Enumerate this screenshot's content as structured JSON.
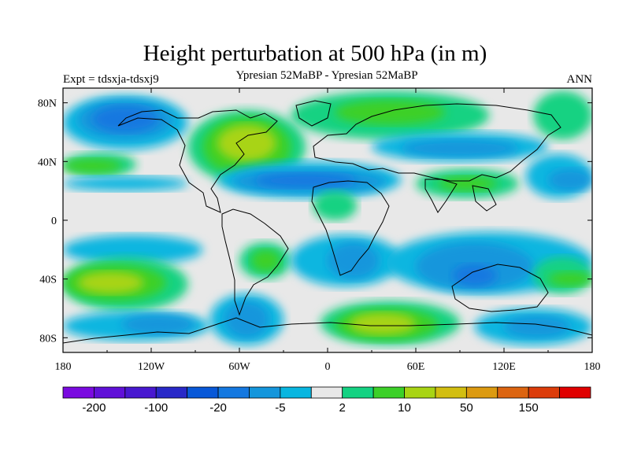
{
  "chart_data": {
    "type": "heatmap",
    "title": "Height perturbation at 500 hPa (in m)",
    "subtitle_left": "Expt = tdsxja-tdsxj9",
    "subtitle_center": "Ypresian  52MaBP - Ypresian  52MaBP",
    "subtitle_right": "ANN",
    "x_axis": {
      "range": [
        -180,
        180
      ],
      "ticks": [
        {
          "value": -180,
          "label": "180"
        },
        {
          "value": -120,
          "label": "120W"
        },
        {
          "value": -60,
          "label": "60W"
        },
        {
          "value": 0,
          "label": "0"
        },
        {
          "value": 60,
          "label": "60E"
        },
        {
          "value": 120,
          "label": "120E"
        },
        {
          "value": 180,
          "label": "180"
        }
      ]
    },
    "y_axis": {
      "range": [
        -90,
        90
      ],
      "ticks": [
        {
          "value": 80,
          "label": "80N"
        },
        {
          "value": 40,
          "label": "40N"
        },
        {
          "value": 0,
          "label": "0"
        },
        {
          "value": -40,
          "label": "40S"
        },
        {
          "value": -80,
          "label": "80S"
        }
      ]
    },
    "colorbar": {
      "colors": [
        "#7a0ae0",
        "#6010d8",
        "#4818d0",
        "#2828c8",
        "#0858d8",
        "#1478e0",
        "#1496dc",
        "#08b6e0",
        "#e8e8e8",
        "#14d282",
        "#3cd028",
        "#a8d414",
        "#d2be10",
        "#dc9a10",
        "#dc6410",
        "#dc3c0a",
        "#e00000"
      ],
      "labels": [
        {
          "after_box": 1,
          "text": "-200"
        },
        {
          "after_box": 3,
          "text": "-100"
        },
        {
          "after_box": 5,
          "text": "-20"
        },
        {
          "after_box": 7,
          "text": "-5"
        },
        {
          "after_box": 9,
          "text": "2"
        },
        {
          "after_box": 11,
          "text": "10"
        },
        {
          "after_box": 13,
          "text": "50"
        },
        {
          "after_box": 15,
          "text": "150"
        }
      ]
    },
    "regions": [
      {
        "level": "neg-light",
        "lon": [
          -180,
          -95
        ],
        "lat": [
          48,
          85
        ]
      },
      {
        "level": "neg-mid",
        "lon": [
          -170,
          -105
        ],
        "lat": [
          55,
          82
        ]
      },
      {
        "level": "neg-strong",
        "lon": [
          -160,
          -115
        ],
        "lat": [
          60,
          78
        ]
      },
      {
        "level": "pos-light",
        "lon": [
          -180,
          -130
        ],
        "lat": [
          30,
          46
        ]
      },
      {
        "level": "pos-mid",
        "lon": [
          -180,
          -140
        ],
        "lat": [
          32,
          42
        ]
      },
      {
        "level": "neg-light",
        "lon": [
          -180,
          -95
        ],
        "lat": [
          20,
          30
        ]
      },
      {
        "level": "pos-light",
        "lon": [
          -95,
          -15
        ],
        "lat": [
          25,
          75
        ]
      },
      {
        "level": "pos-mid",
        "lon": [
          -85,
          -25
        ],
        "lat": [
          30,
          70
        ]
      },
      {
        "level": "pos-strong",
        "lon": [
          -75,
          -35
        ],
        "lat": [
          40,
          65
        ]
      },
      {
        "level": "neg-light",
        "lon": [
          -75,
          50
        ],
        "lat": [
          15,
          40
        ]
      },
      {
        "level": "neg-mid",
        "lon": [
          -65,
          40
        ],
        "lat": [
          18,
          35
        ]
      },
      {
        "level": "neg-strong",
        "lon": [
          -50,
          20
        ],
        "lat": [
          22,
          32
        ]
      },
      {
        "level": "pos-light",
        "lon": [
          -25,
          110
        ],
        "lat": [
          55,
          88
        ]
      },
      {
        "level": "pos-mid",
        "lon": [
          5,
          80
        ],
        "lat": [
          65,
          82
        ]
      },
      {
        "level": "neg-light",
        "lon": [
          30,
          150
        ],
        "lat": [
          40,
          60
        ]
      },
      {
        "level": "neg-mid",
        "lon": [
          50,
          130
        ],
        "lat": [
          43,
          55
        ]
      },
      {
        "level": "pos-light",
        "lon": [
          60,
          130
        ],
        "lat": [
          15,
          35
        ]
      },
      {
        "level": "pos-mid",
        "lon": [
          75,
          115
        ],
        "lat": [
          20,
          30
        ]
      },
      {
        "level": "pos-light",
        "lon": [
          140,
          180
        ],
        "lat": [
          55,
          88
        ]
      },
      {
        "level": "neg-light",
        "lon": [
          135,
          180
        ],
        "lat": [
          15,
          45
        ]
      },
      {
        "level": "neg-mid",
        "lon": [
          150,
          180
        ],
        "lat": [
          20,
          35
        ]
      },
      {
        "level": "pos-light",
        "lon": [
          -10,
          20
        ],
        "lat": [
          0,
          20
        ]
      },
      {
        "level": "neg-light",
        "lon": [
          -180,
          -85
        ],
        "lat": [
          -30,
          -10
        ]
      },
      {
        "level": "pos-light",
        "lon": [
          -180,
          -95
        ],
        "lat": [
          -62,
          -25
        ]
      },
      {
        "level": "pos-mid",
        "lon": [
          -180,
          -110
        ],
        "lat": [
          -55,
          -30
        ]
      },
      {
        "level": "pos-strong",
        "lon": [
          -170,
          -125
        ],
        "lat": [
          -50,
          -35
        ]
      },
      {
        "level": "neg-light",
        "lon": [
          -180,
          -80
        ],
        "lat": [
          -82,
          -62
        ]
      },
      {
        "level": "neg-mid",
        "lon": [
          -140,
          -90
        ],
        "lat": [
          -78,
          -64
        ]
      },
      {
        "level": "pos-light",
        "lon": [
          -60,
          -25
        ],
        "lat": [
          -40,
          -15
        ]
      },
      {
        "level": "pos-mid",
        "lon": [
          -52,
          -32
        ],
        "lat": [
          -35,
          -20
        ]
      },
      {
        "level": "neg-light",
        "lon": [
          -25,
          50
        ],
        "lat": [
          -45,
          -10
        ]
      },
      {
        "level": "neg-mid",
        "lon": [
          0,
          35
        ],
        "lat": [
          -40,
          -15
        ]
      },
      {
        "level": "neg-light",
        "lon": [
          -80,
          -30
        ],
        "lat": [
          -85,
          -50
        ]
      },
      {
        "level": "neg-mid",
        "lon": [
          -70,
          -40
        ],
        "lat": [
          -80,
          -55
        ]
      },
      {
        "level": "pos-light",
        "lon": [
          -5,
          90
        ],
        "lat": [
          -85,
          -55
        ]
      },
      {
        "level": "pos-mid",
        "lon": [
          5,
          75
        ],
        "lat": [
          -82,
          -60
        ]
      },
      {
        "level": "pos-strong",
        "lon": [
          15,
          60
        ],
        "lat": [
          -78,
          -63
        ]
      },
      {
        "level": "neg-light",
        "lon": [
          40,
          180
        ],
        "lat": [
          -50,
          -8
        ]
      },
      {
        "level": "neg-mid",
        "lon": [
          60,
          140
        ],
        "lat": [
          -48,
          -15
        ]
      },
      {
        "level": "neg-strong",
        "lon": [
          85,
          115
        ],
        "lat": [
          -45,
          -30
        ]
      },
      {
        "level": "pos-light",
        "lon": [
          140,
          180
        ],
        "lat": [
          -50,
          -25
        ]
      },
      {
        "level": "pos-mid",
        "lon": [
          150,
          180
        ],
        "lat": [
          -45,
          -35
        ]
      },
      {
        "level": "neg-light",
        "lon": [
          100,
          180
        ],
        "lat": [
          -85,
          -60
        ]
      },
      {
        "level": "neg-mid",
        "lon": [
          120,
          165
        ],
        "lat": [
          -80,
          -65
        ]
      }
    ]
  }
}
